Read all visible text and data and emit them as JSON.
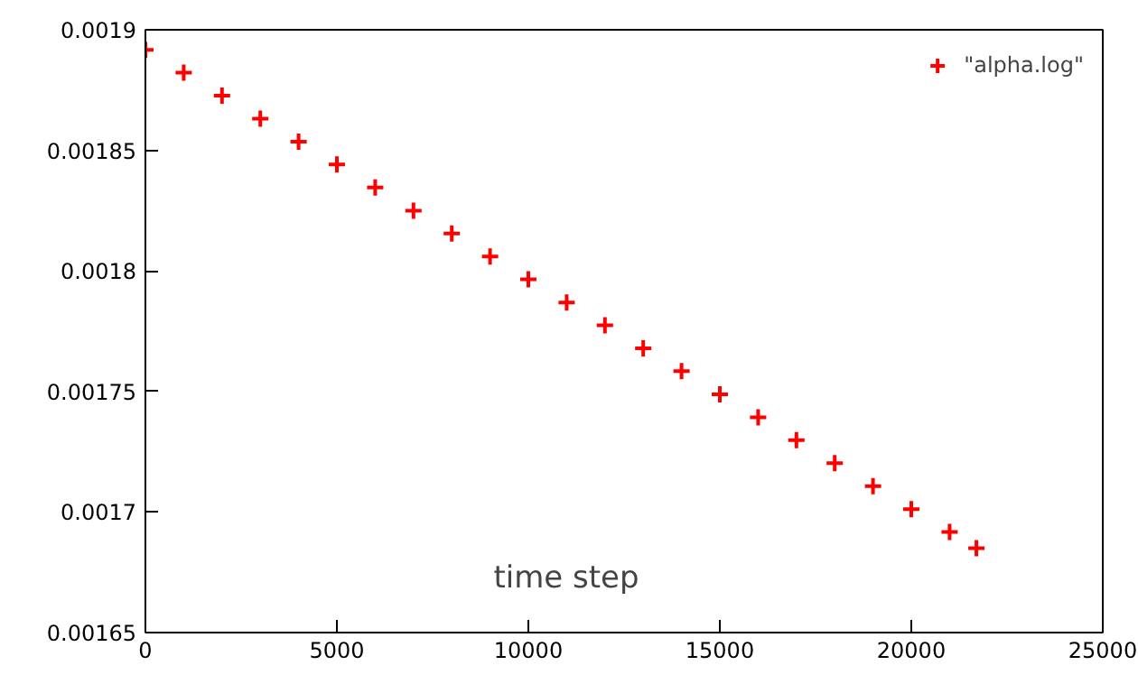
{
  "chart_data": {
    "type": "scatter",
    "xlabel": "time step",
    "marker": "cross",
    "grid": false,
    "legend": "top right",
    "xlim": [
      0,
      25000
    ],
    "xticks": [
      0,
      5000,
      10000,
      15000,
      20000,
      25000
    ],
    "ylim": [
      0.00165,
      0.0019
    ],
    "yticks": [
      0.00165,
      0.0017,
      0.00175,
      0.0018,
      0.00185,
      0.0019
    ],
    "x": [
      0,
      1000,
      2000,
      3000,
      4000,
      5000,
      6000,
      7000,
      8000,
      9000,
      10000,
      11000,
      12000,
      13000,
      14000,
      15000,
      16000,
      17000,
      18000,
      19000,
      20000,
      21000,
      21700
    ],
    "series": [
      {
        "name": "\"alpha.log\"",
        "color": "#ff0000",
        "values": [
          0.0018917,
          0.0018822,
          0.0018727,
          0.0018631,
          0.0018536,
          0.0018441,
          0.0018346,
          0.001825,
          0.0018155,
          0.001806,
          0.0017965,
          0.0017869,
          0.0017774,
          0.0017679,
          0.0017584,
          0.0017488,
          0.0017393,
          0.0017298,
          0.0017203,
          0.0017107,
          0.0017012,
          0.0016917,
          0.001685
        ]
      }
    ]
  }
}
